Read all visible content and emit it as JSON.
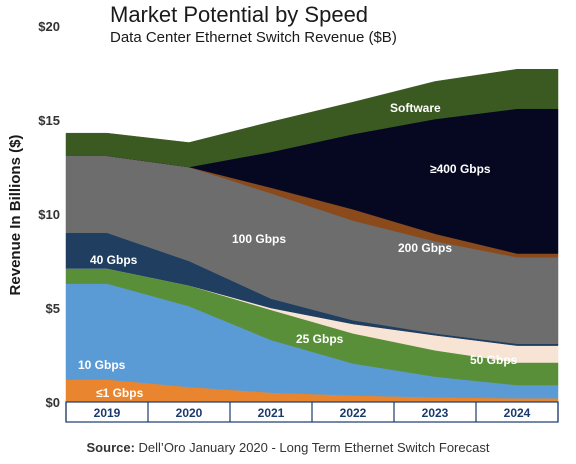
{
  "chart_data": {
    "type": "area",
    "title": "Market Potential by Speed",
    "subtitle": "Data Center Ethernet Switch Revenue ($B)",
    "ylabel": "Revenue In Billions ($)",
    "xlabel": "",
    "ylim": [
      0,
      20
    ],
    "yticks": [
      "$0",
      "$5",
      "$10",
      "$15",
      "$20"
    ],
    "ytick_values": [
      0,
      5,
      10,
      15,
      20
    ],
    "categories": [
      "2019",
      "2020",
      "2021",
      "2022",
      "2023",
      "2024"
    ],
    "stacked": true,
    "series": [
      {
        "name": "≤1 Gbps",
        "color": "#e8852e",
        "values": [
          1.2,
          0.8,
          0.5,
          0.35,
          0.25,
          0.2
        ]
      },
      {
        "name": "10 Gbps",
        "color": "#5b9bd5",
        "values": [
          5.1,
          4.3,
          2.8,
          1.7,
          1.1,
          0.7
        ]
      },
      {
        "name": "25 Gbps",
        "color": "#5a8f3a",
        "values": [
          0.8,
          1.1,
          1.6,
          1.6,
          1.4,
          1.2
        ]
      },
      {
        "name": "50 Gbps",
        "color": "#f8e4d4",
        "values": [
          0.0,
          0.0,
          0.1,
          0.5,
          0.8,
          0.9
        ]
      },
      {
        "name": "40 Gbps",
        "color": "#1f3e60",
        "values": [
          1.9,
          1.3,
          0.5,
          0.2,
          0.1,
          0.1
        ]
      },
      {
        "name": "100 Gbps",
        "color": "#6d6d6d",
        "values": [
          4.1,
          5.0,
          5.6,
          5.3,
          4.9,
          4.6
        ]
      },
      {
        "name": "200 Gbps",
        "color": "#8a4a1c",
        "values": [
          0.0,
          0.0,
          0.3,
          0.6,
          0.4,
          0.2
        ]
      },
      {
        "name": "≥400 Gbps",
        "color": "#060822",
        "values": [
          0.0,
          0.0,
          1.9,
          4.0,
          6.1,
          7.7
        ]
      },
      {
        "name": "Software",
        "color": "#3a5a22",
        "values": [
          1.2,
          1.3,
          1.6,
          1.7,
          2.0,
          2.1
        ]
      }
    ],
    "labels": {
      "lt1": "≤1 Gbps",
      "g10": "10 Gbps",
      "g25": "25 Gbps",
      "g50": "50 Gbps",
      "g40": "40 Gbps",
      "g100": "100 Gbps",
      "g200": "200 Gbps",
      "g400": "≥400 Gbps",
      "software": "Software"
    },
    "grid": false,
    "legend": "inline labels"
  },
  "source": {
    "prefix": "Source:",
    "text": " Dell’Oro January 2020 - Long Term Ethernet Switch Forecast"
  },
  "colors": {
    "axis": "#1a3a6e",
    "tick_box": "#1a3a6e"
  }
}
